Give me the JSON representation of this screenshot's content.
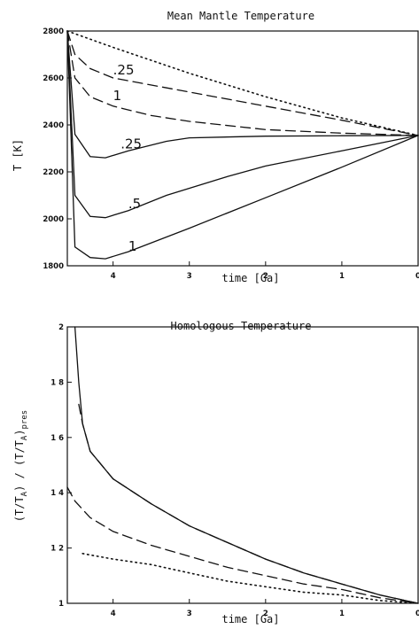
{
  "chart_data": [
    {
      "type": "line",
      "title": "Mean Mantle Temperature",
      "xlabel": "time [Ga]",
      "ylabel": "T [K]",
      "xlim": [
        4.6,
        0
      ],
      "ylim": [
        1800,
        2800
      ],
      "xticks": [
        "4",
        "3",
        "2",
        "1",
        "0"
      ],
      "yticks": [
        "1800",
        "2000",
        "2200",
        "2400",
        "2600",
        "2800"
      ],
      "series": [
        {
          "style": "dotted",
          "points": [
            [
              4.6,
              2800
            ],
            [
              4.0,
              2730
            ],
            [
              3.0,
              2620
            ],
            [
              2.0,
              2520
            ],
            [
              1.0,
              2430
            ],
            [
              0.0,
              2355
            ]
          ]
        },
        {
          "style": "dashed",
          "label": ".25",
          "points": [
            [
              4.6,
              2800
            ],
            [
              4.5,
              2700
            ],
            [
              4.3,
              2640
            ],
            [
              4.0,
              2600
            ],
            [
              3.0,
              2540
            ],
            [
              2.0,
              2480
            ],
            [
              1.0,
              2420
            ],
            [
              0.0,
              2355
            ]
          ]
        },
        {
          "style": "dashed",
          "label": "1",
          "points": [
            [
              4.6,
              2800
            ],
            [
              4.5,
              2600
            ],
            [
              4.3,
              2520
            ],
            [
              4.0,
              2480
            ],
            [
              3.5,
              2440
            ],
            [
              3.0,
              2415
            ],
            [
              2.0,
              2380
            ],
            [
              1.0,
              2365
            ],
            [
              0.0,
              2355
            ]
          ]
        },
        {
          "style": "solid",
          "label": ".25",
          "points": [
            [
              4.6,
              2800
            ],
            [
              4.5,
              2360
            ],
            [
              4.3,
              2265
            ],
            [
              4.1,
              2260
            ],
            [
              3.8,
              2290
            ],
            [
              3.3,
              2330
            ],
            [
              3.0,
              2345
            ],
            [
              2.0,
              2352
            ],
            [
              1.0,
              2354
            ],
            [
              0.0,
              2355
            ]
          ]
        },
        {
          "style": "solid",
          "label": ".5",
          "points": [
            [
              4.6,
              2800
            ],
            [
              4.5,
              2100
            ],
            [
              4.3,
              2010
            ],
            [
              4.1,
              2005
            ],
            [
              3.8,
              2035
            ],
            [
              3.3,
              2100
            ],
            [
              2.5,
              2180
            ],
            [
              2.0,
              2225
            ],
            [
              1.0,
              2290
            ],
            [
              0.0,
              2355
            ]
          ]
        },
        {
          "style": "solid",
          "label": "1",
          "points": [
            [
              4.6,
              2800
            ],
            [
              4.5,
              1880
            ],
            [
              4.3,
              1835
            ],
            [
              4.1,
              1830
            ],
            [
              3.8,
              1860
            ],
            [
              3.0,
              1960
            ],
            [
              2.0,
              2090
            ],
            [
              1.0,
              2220
            ],
            [
              0.0,
              2355
            ]
          ]
        }
      ]
    },
    {
      "type": "line",
      "title": "Homologous Temperature",
      "xlabel": "time [Ga]",
      "ylabel": "(T/T",
      "ylabel_sub1": "A",
      "ylabel_mid": ") / (T/T",
      "ylabel_sub2": "A",
      "ylabel_end": ")",
      "ylabel_sub3": "pres",
      "xlim": [
        4.6,
        0
      ],
      "ylim": [
        1,
        2
      ],
      "xticks": [
        "4",
        "3",
        "2",
        "1",
        "0"
      ],
      "yticks": [
        "1",
        "1 2",
        "1 4",
        "1 6",
        "1 8",
        "2"
      ],
      "series": [
        {
          "style": "solid",
          "points": [
            [
              4.5,
              2.0
            ],
            [
              4.45,
              1.8
            ],
            [
              4.4,
              1.65
            ],
            [
              4.3,
              1.55
            ],
            [
              4.0,
              1.45
            ],
            [
              3.5,
              1.36
            ],
            [
              3.0,
              1.28
            ],
            [
              2.5,
              1.22
            ],
            [
              2.0,
              1.16
            ],
            [
              1.5,
              1.11
            ],
            [
              1.0,
              1.07
            ],
            [
              0.5,
              1.03
            ],
            [
              0.0,
              1.0
            ]
          ]
        },
        {
          "style": "dashed",
          "points": [
            [
              4.45,
              1.72
            ],
            [
              4.4,
              1.65
            ],
            [
              4.3,
              1.55
            ],
            [
              4.0,
              1.45
            ],
            [
              3.5,
              1.36
            ],
            [
              3.0,
              1.28
            ],
            [
              2.5,
              1.22
            ],
            [
              2.0,
              1.16
            ],
            [
              1.5,
              1.11
            ],
            [
              1.0,
              1.07
            ],
            [
              0.5,
              1.03
            ],
            [
              0.0,
              1.0
            ]
          ]
        },
        {
          "style": "dashed",
          "points": [
            [
              4.6,
              1.42
            ],
            [
              4.5,
              1.37
            ],
            [
              4.3,
              1.31
            ],
            [
              4.0,
              1.26
            ],
            [
              3.5,
              1.21
            ],
            [
              3.0,
              1.17
            ],
            [
              2.5,
              1.13
            ],
            [
              2.0,
              1.1
            ],
            [
              1.5,
              1.07
            ],
            [
              1.0,
              1.05
            ],
            [
              0.5,
              1.02
            ],
            [
              0.0,
              1.0
            ]
          ]
        },
        {
          "style": "dotted",
          "points": [
            [
              4.4,
              1.18
            ],
            [
              4.0,
              1.16
            ],
            [
              3.5,
              1.14
            ],
            [
              3.0,
              1.11
            ],
            [
              2.5,
              1.08
            ],
            [
              2.0,
              1.06
            ],
            [
              1.5,
              1.04
            ],
            [
              1.0,
              1.03
            ],
            [
              0.5,
              1.01
            ],
            [
              0.0,
              1.0
            ]
          ]
        }
      ]
    }
  ]
}
